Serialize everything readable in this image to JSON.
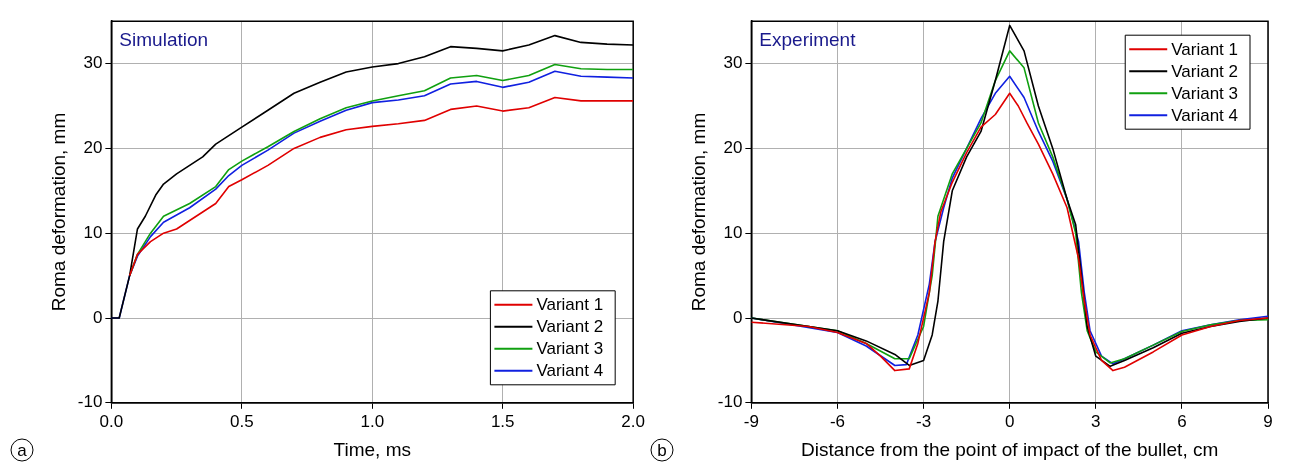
{
  "chart_data": [
    {
      "type": "line",
      "title": "Simulation",
      "xlabel": "Time, ms",
      "ylabel": "Roma deformation, mm",
      "annotations": [
        "a"
      ],
      "xlim": [
        0,
        2
      ],
      "xticks": [
        {
          "value": 0,
          "label": "0.0"
        },
        {
          "value": 0.5,
          "label": "0.5"
        },
        {
          "value": 1,
          "label": "1.0"
        },
        {
          "value": 1.5,
          "label": "1.5"
        },
        {
          "value": 2,
          "label": "2.0"
        }
      ],
      "ylim": [
        -10,
        35
      ],
      "yticks": [
        -10,
        0,
        10,
        20,
        30
      ],
      "grid": true,
      "legend": "bottom right",
      "series": [
        {
          "name": "Variant 1",
          "color": "#e00000",
          "x": [
            0.07,
            0.1,
            0.15,
            0.2,
            0.25,
            0.3,
            0.4,
            0.45,
            0.5,
            0.6,
            0.7,
            0.8,
            0.9,
            1.0,
            1.1,
            1.2,
            1.3,
            1.4,
            1.5,
            1.6,
            1.7,
            1.8,
            1.9,
            2.0
          ],
          "values": [
            5,
            7.5,
            9,
            10,
            10.5,
            11.5,
            13.5,
            15.5,
            16.3,
            18,
            20,
            21.3,
            22.2,
            22.6,
            22.9,
            23.3,
            24.6,
            25,
            24.4,
            24.8,
            26,
            25.6,
            25.6,
            25.6
          ]
        },
        {
          "name": "Variant 2",
          "color": "#000000",
          "x": [
            0,
            0.03,
            0.07,
            0.1,
            0.13,
            0.17,
            0.2,
            0.25,
            0.3,
            0.35,
            0.4,
            0.5,
            0.6,
            0.7,
            0.8,
            0.9,
            1.0,
            1.1,
            1.2,
            1.3,
            1.4,
            1.5,
            1.6,
            1.7,
            1.8,
            1.9,
            2.0
          ],
          "values": [
            0,
            0,
            5,
            10.5,
            12,
            14.5,
            15.8,
            17,
            18,
            19,
            20.5,
            22.5,
            24.5,
            26.5,
            27.8,
            29,
            29.6,
            30,
            30.8,
            32,
            31.8,
            31.5,
            32.2,
            33.3,
            32.5,
            32.3,
            32.2
          ]
        },
        {
          "name": "Variant 3",
          "color": "#10a010",
          "x": [
            0.07,
            0.1,
            0.15,
            0.2,
            0.3,
            0.4,
            0.45,
            0.5,
            0.6,
            0.7,
            0.8,
            0.9,
            1.0,
            1.1,
            1.2,
            1.3,
            1.4,
            1.5,
            1.6,
            1.7,
            1.8,
            1.9,
            2.0
          ],
          "values": [
            5,
            7.5,
            10,
            12,
            13.5,
            15.5,
            17.5,
            18.5,
            20.2,
            22,
            23.5,
            24.8,
            25.6,
            26.2,
            26.8,
            28.3,
            28.6,
            28,
            28.6,
            29.9,
            29.4,
            29.3,
            29.3
          ]
        },
        {
          "name": "Variant 4",
          "color": "#1020e0",
          "x": [
            0,
            0.03,
            0.07,
            0.1,
            0.15,
            0.2,
            0.3,
            0.4,
            0.45,
            0.5,
            0.6,
            0.7,
            0.8,
            0.9,
            1.0,
            1.1,
            1.2,
            1.3,
            1.4,
            1.5,
            1.6,
            1.7,
            1.8,
            1.9,
            2.0
          ],
          "values": [
            0,
            0,
            5,
            7.3,
            9.6,
            11.3,
            13,
            15.2,
            16.8,
            18,
            19.8,
            21.8,
            23.2,
            24.5,
            25.4,
            25.7,
            26.2,
            27.6,
            27.9,
            27.2,
            27.8,
            29.1,
            28.5,
            28.4,
            28.3
          ]
        }
      ]
    },
    {
      "type": "line",
      "title": "Experiment",
      "xlabel": "Distance from the point of impact of the bullet, cm",
      "ylabel": "Roma deformation, mm",
      "annotations": [
        "b"
      ],
      "xlim": [
        -9,
        9
      ],
      "xticks": [
        -9,
        -6,
        -3,
        0,
        3,
        6,
        9
      ],
      "ylim": [
        -10,
        35
      ],
      "yticks": [
        -10,
        0,
        10,
        20,
        30
      ],
      "grid": true,
      "legend": "top right",
      "series": [
        {
          "name": "Variant 1",
          "color": "#e00000",
          "x": [
            -9,
            -7,
            -6,
            -5,
            -4.5,
            -4,
            -3.5,
            -3.2,
            -2.8,
            -2.6,
            -2.4,
            -2,
            -1.5,
            -1,
            -0.5,
            0,
            0.3,
            0.6,
            1,
            1.5,
            2,
            2.2,
            2.4,
            2.6,
            2.8,
            3.2,
            3.6,
            4,
            5,
            6,
            7,
            8,
            9
          ],
          "values": [
            -0.5,
            -1,
            -1.7,
            -3,
            -4.5,
            -6.2,
            -6,
            -3,
            3,
            9,
            12.5,
            16,
            19.5,
            22.5,
            24,
            26.5,
            25,
            23,
            20.5,
            17,
            13,
            10,
            7,
            2,
            -2,
            -5,
            -6.2,
            -5.8,
            -4,
            -2,
            -1,
            -0.3,
            0
          ]
        },
        {
          "name": "Variant 2",
          "color": "#000000",
          "x": [
            -9,
            -6,
            -5,
            -4,
            -3.5,
            -3,
            -2.7,
            -2.5,
            -2.3,
            -2,
            -1.5,
            -1,
            -0.5,
            0,
            0.5,
            1,
            1.5,
            2,
            2.3,
            2.5,
            2.7,
            3,
            3.5,
            4,
            5,
            6,
            7,
            8,
            9
          ],
          "values": [
            0,
            -1.5,
            -2.7,
            -4.3,
            -5.6,
            -5,
            -2,
            2,
            9,
            15,
            19,
            22,
            28,
            34.5,
            31.5,
            25,
            20,
            14,
            11,
            5,
            -1,
            -4.5,
            -5.7,
            -5,
            -3.5,
            -1.8,
            -1,
            -0.4,
            0
          ]
        },
        {
          "name": "Variant 3",
          "color": "#10a010",
          "x": [
            -9,
            -6,
            -5,
            -4,
            -3.5,
            -3,
            -2.7,
            -2.5,
            -2,
            -1.5,
            -1,
            -0.5,
            0,
            0.5,
            1,
            1.5,
            2,
            2.3,
            2.5,
            2.7,
            3,
            3.5,
            4,
            5,
            6,
            7,
            8,
            9
          ],
          "values": [
            0,
            -1.5,
            -3,
            -4.8,
            -4.8,
            -1,
            5,
            12,
            17,
            20,
            23,
            28,
            31.5,
            29.5,
            23,
            19,
            14,
            10,
            3,
            -1.5,
            -4,
            -5.3,
            -4.8,
            -3.2,
            -1.6,
            -0.8,
            -0.3,
            -0.2
          ]
        },
        {
          "name": "Variant 4",
          "color": "#1020e0",
          "x": [
            -9,
            -6,
            -5,
            -4,
            -3.6,
            -3.2,
            -2.8,
            -2.6,
            -2.3,
            -2,
            -1.5,
            -1,
            -0.5,
            0,
            0.5,
            1,
            1.5,
            2,
            2.4,
            2.6,
            2.8,
            3.2,
            3.6,
            4,
            5,
            6,
            7,
            8,
            9
          ],
          "values": [
            0,
            -1.7,
            -3.3,
            -5.6,
            -5.5,
            -2,
            4,
            9,
            13,
            16.5,
            20,
            23.5,
            26.5,
            28.5,
            26,
            22,
            18.5,
            14,
            9,
            3,
            -1.5,
            -4.5,
            -5.4,
            -4.8,
            -3.2,
            -1.5,
            -0.8,
            -0.2,
            0.2
          ]
        }
      ]
    }
  ]
}
